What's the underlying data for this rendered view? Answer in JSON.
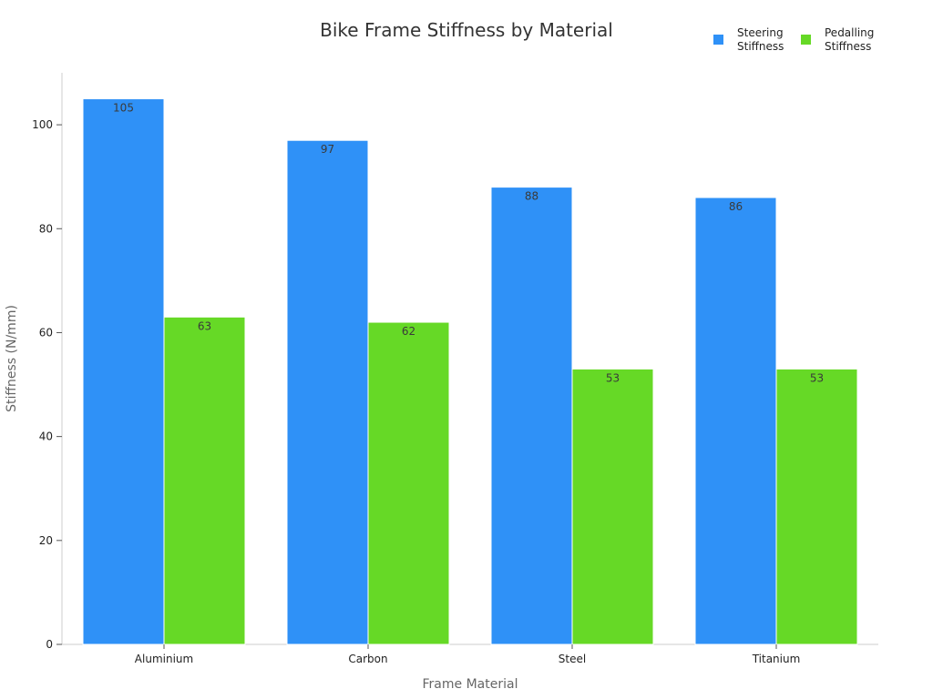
{
  "chart_data": {
    "type": "bar",
    "title": "Bike Frame Stiffness by Material",
    "xlabel": "Frame Material",
    "ylabel": "Stiffness (N/mm)",
    "categories": [
      "Aluminium",
      "Carbon",
      "Steel",
      "Titanium"
    ],
    "series": [
      {
        "name": "Steering Stiffness",
        "legend_lines": [
          "Steering",
          "Stiffness"
        ],
        "color": "#2f91f7",
        "values": [
          105,
          97,
          88,
          86
        ]
      },
      {
        "name": "Pedalling Stiffness",
        "legend_lines": [
          "Pedalling",
          "Stiffness"
        ],
        "color": "#66d926",
        "values": [
          63,
          62,
          53,
          53
        ]
      }
    ],
    "ylim": [
      0,
      110
    ],
    "yticks": [
      0,
      20,
      40,
      60,
      80,
      100
    ],
    "grid": false,
    "legend_position": "top-right"
  }
}
